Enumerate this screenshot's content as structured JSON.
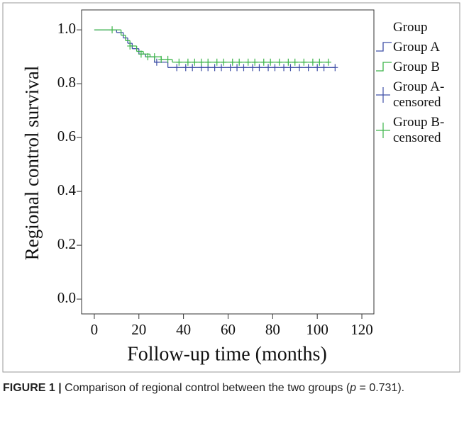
{
  "chart_data": {
    "type": "km-survival",
    "y_label": "Regional control survival",
    "x_label": "Follow-up time (months)",
    "legend_title": "Group",
    "xlim": [
      -5.7,
      125.4
    ],
    "ylim": [
      -0.055,
      1.074
    ],
    "xticks": [
      0,
      20,
      40,
      60,
      80,
      100,
      120
    ],
    "yticks": [
      {
        "value": 0,
        "label": "0.0"
      },
      0.2,
      0.4,
      0.6,
      0.8,
      {
        "value": 1,
        "label": "1.0"
      }
    ],
    "series": [
      {
        "name": "Group A",
        "kind": "step",
        "color": "#3f4fa6",
        "x": [
          0,
          10,
          13,
          15,
          17,
          20,
          23,
          27,
          33,
          108
        ],
        "values": [
          1.0,
          0.99,
          0.97,
          0.95,
          0.93,
          0.91,
          0.9,
          0.88,
          0.86,
          0.86
        ]
      },
      {
        "name": "Group B",
        "kind": "step",
        "color": "#3db54a",
        "x": [
          0,
          12,
          14,
          16,
          19,
          22,
          25,
          30,
          35,
          105
        ],
        "values": [
          1.0,
          0.98,
          0.96,
          0.94,
          0.92,
          0.91,
          0.9,
          0.89,
          0.88,
          0.88
        ]
      },
      {
        "name": "Group A-censored",
        "kind": "censor",
        "color": "#3f4fa6",
        "x": [
          28,
          37,
          41,
          44,
          48,
          51,
          54,
          57,
          61,
          64,
          67,
          71,
          74,
          78,
          81,
          85,
          88,
          92,
          96,
          100,
          103,
          108
        ],
        "values": [
          0.88,
          0.86,
          0.86,
          0.86,
          0.86,
          0.86,
          0.86,
          0.86,
          0.86,
          0.86,
          0.86,
          0.86,
          0.86,
          0.86,
          0.86,
          0.86,
          0.86,
          0.86,
          0.86,
          0.86,
          0.86,
          0.86
        ]
      },
      {
        "name": "Group B-censored",
        "kind": "censor",
        "color": "#3db54a",
        "x": [
          8,
          16,
          21,
          24,
          27,
          30,
          33,
          38,
          42,
          45,
          48,
          51,
          55,
          58,
          62,
          65,
          69,
          72,
          76,
          79,
          83,
          87,
          90,
          94,
          98,
          101,
          105
        ],
        "values": [
          1.0,
          0.94,
          0.91,
          0.9,
          0.9,
          0.89,
          0.89,
          0.88,
          0.88,
          0.88,
          0.88,
          0.88,
          0.88,
          0.88,
          0.88,
          0.88,
          0.88,
          0.88,
          0.88,
          0.88,
          0.88,
          0.88,
          0.88,
          0.88,
          0.88,
          0.88,
          0.88
        ]
      }
    ]
  },
  "caption": {
    "label": "FIGURE 1 |",
    "text_before": "Comparison of regional control between the two groups (",
    "italic": "p",
    "text_after": " = 0.731)."
  }
}
